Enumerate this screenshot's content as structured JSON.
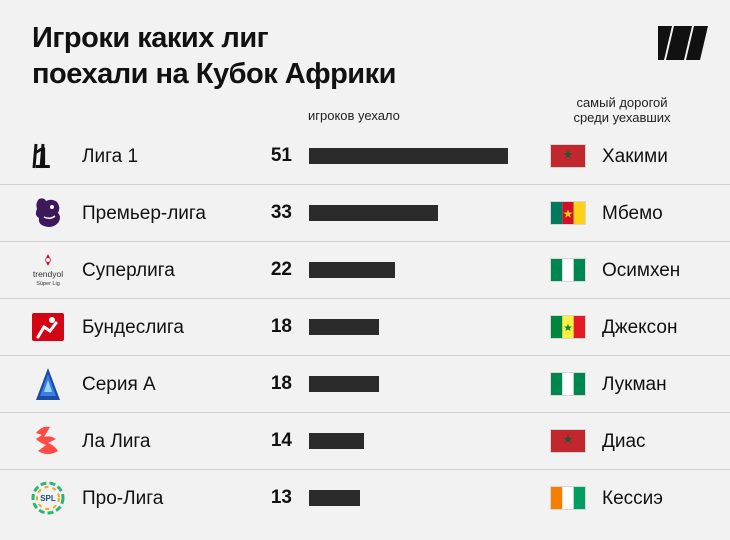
{
  "title": {
    "line1": "Игроки каких лиг",
    "line2": "поехали на Кубок Африки"
  },
  "headers": {
    "players": "игроков уехало",
    "priciest_line1": "самый дорогой",
    "priciest_line2": "среди уехавших"
  },
  "colors": {
    "background": "#f2f2f2",
    "bar": "#2b2b2b",
    "text": "#111111",
    "divider": "#d0d0d0"
  },
  "chart_data": {
    "type": "bar",
    "title": "Игроки каких лиг поехали на Кубок Африки",
    "xlabel": "игроков уехало",
    "categories": [
      "Лига 1",
      "Премьер-лига",
      "Суперлига",
      "Бундеслига",
      "Серия А",
      "Ла Лига",
      "Про-Лига"
    ],
    "values": [
      51,
      33,
      22,
      18,
      18,
      14,
      13
    ],
    "xlim": [
      0,
      51
    ],
    "grid": false,
    "rows": [
      {
        "league": "Лига 1",
        "icon": "ligue1-logo-icon",
        "count": "51",
        "value": 51,
        "flag": "morocco-flag",
        "player": "Хакими"
      },
      {
        "league": "Премьер-лига",
        "icon": "premier-league-lion-icon",
        "count": "33",
        "value": 33,
        "flag": "cameroon-flag",
        "player": "Мбемо"
      },
      {
        "league": "Суперлига",
        "icon": "trendyol-superlig-logo-icon",
        "count": "22",
        "value": 22,
        "flag": "nigeria-flag",
        "player": "Осимхен",
        "logo_text": "trendyol Süper Lig"
      },
      {
        "league": "Бундеслига",
        "icon": "bundesliga-logo-icon",
        "count": "18",
        "value": 18,
        "flag": "senegal-flag",
        "player": "Джексон"
      },
      {
        "league": "Серия А",
        "icon": "serie-a-logo-icon",
        "count": "18",
        "value": 18,
        "flag": "nigeria-flag",
        "player": "Лукман"
      },
      {
        "league": "Ла Лига",
        "icon": "laliga-logo-icon",
        "count": "14",
        "value": 14,
        "flag": "morocco-flag",
        "player": "Диас"
      },
      {
        "league": "Про-Лига",
        "icon": "saudi-pro-league-logo-icon",
        "count": "13",
        "value": 13,
        "flag": "ivory-coast-flag",
        "player": "Кессиэ",
        "logo_text": "SPL"
      }
    ]
  }
}
